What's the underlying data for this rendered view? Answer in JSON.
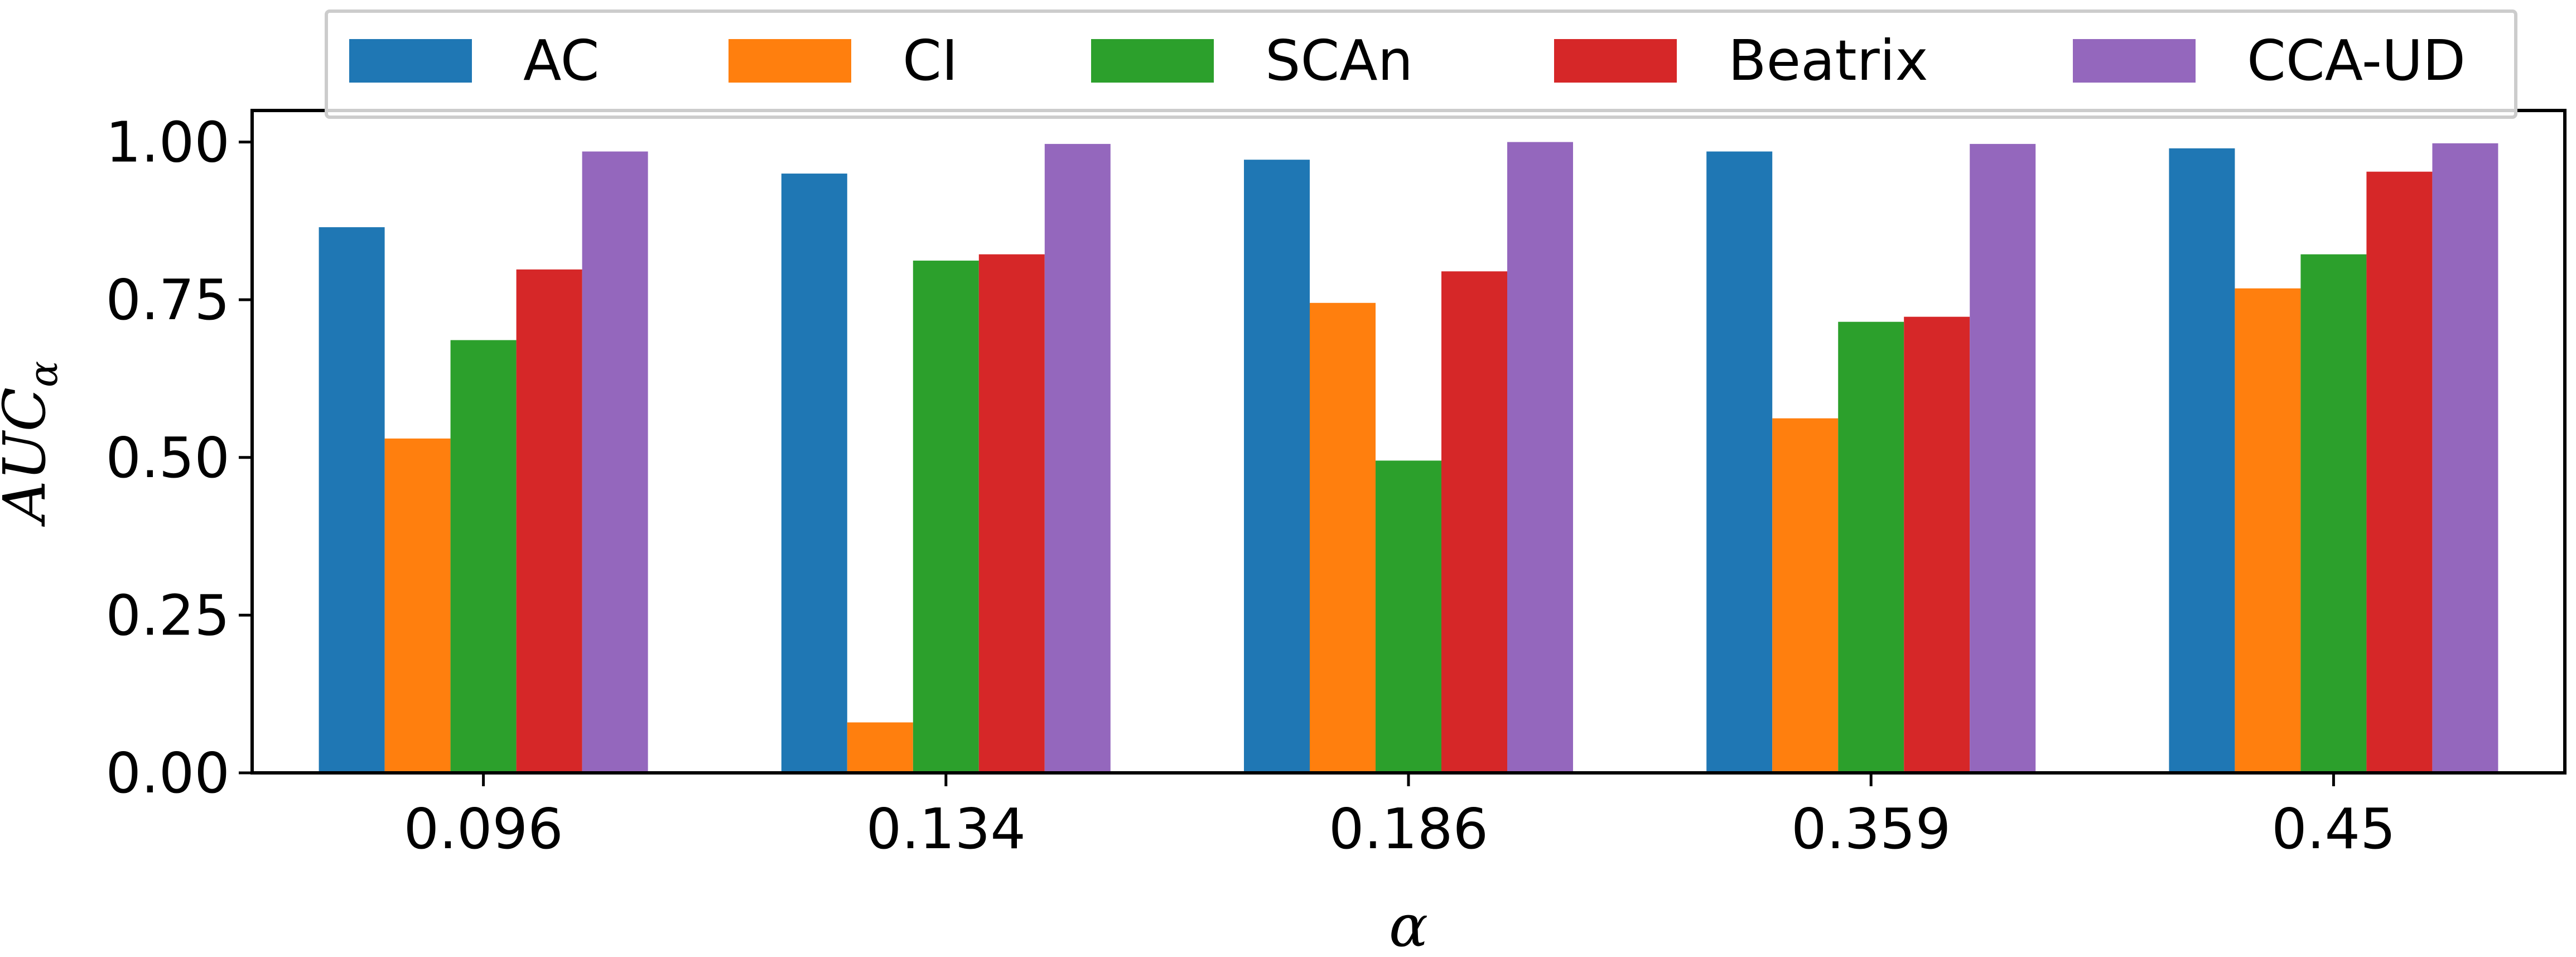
{
  "chart_data": {
    "type": "bar",
    "title": "",
    "xlabel": "α",
    "ylabel": "AUC",
    "ylabel_subscript": "α",
    "ylabel_overline": true,
    "ylim": [
      0,
      1.05
    ],
    "yticks": [
      "0.00",
      "0.25",
      "0.50",
      "0.75",
      "1.00"
    ],
    "categories": [
      "0.096",
      "0.134",
      "0.186",
      "0.359",
      "0.45"
    ],
    "series": [
      {
        "name": "AC",
        "color": "#1f77b4",
        "values": [
          0.865,
          0.95,
          0.972,
          0.985,
          0.99
        ]
      },
      {
        "name": "CI",
        "color": "#ff7f0e",
        "values": [
          0.53,
          0.08,
          0.745,
          0.562,
          0.768
        ]
      },
      {
        "name": "SCAn",
        "color": "#2ca02c",
        "values": [
          0.686,
          0.812,
          0.495,
          0.715,
          0.822
        ]
      },
      {
        "name": "Beatrix",
        "color": "#d62728",
        "values": [
          0.798,
          0.822,
          0.795,
          0.723,
          0.953
        ]
      },
      {
        "name": "CCA-UD",
        "color": "#9467bd",
        "values": [
          0.985,
          0.997,
          1.0,
          0.997,
          0.998
        ]
      }
    ],
    "legend": {
      "placement": "top-center"
    },
    "grid": false
  }
}
